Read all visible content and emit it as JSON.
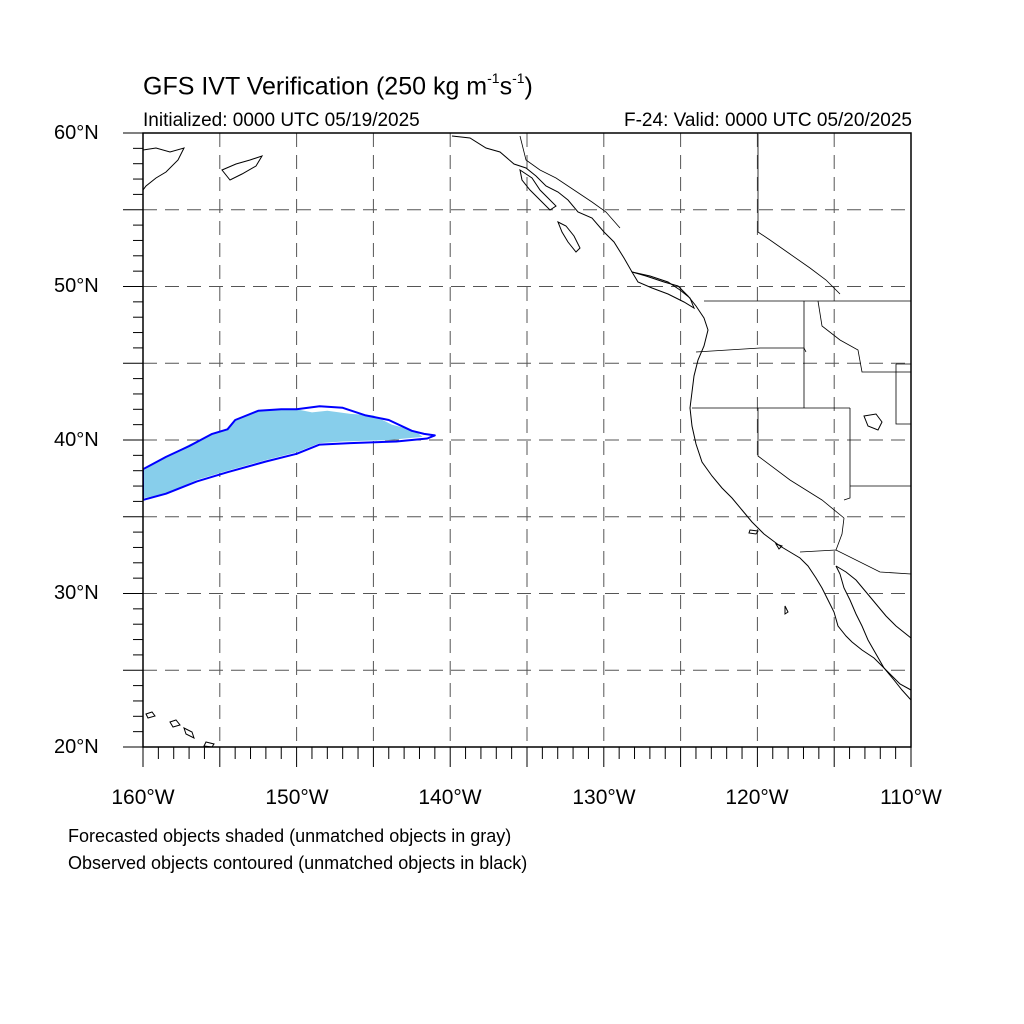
{
  "title": {
    "main": "GFS IVT Verification (250 kg m",
    "exp1": "-1",
    "mid": "s",
    "exp2": "-1",
    "close": ")"
  },
  "subtitle_left": "Initialized: 0000 UTC 05/19/2025",
  "subtitle_right": "F-24: Valid: 0000 UTC 05/20/2025",
  "lat_labels": [
    "60°N",
    "50°N",
    "40°N",
    "30°N",
    "20°N"
  ],
  "lon_labels": [
    "160°W",
    "150°W",
    "140°W",
    "130°W",
    "120°W",
    "110°W"
  ],
  "footnotes": [
    "Forecasted objects shaded (unmatched objects in gray)",
    "Observed objects contoured (unmatched objects in black)"
  ],
  "colors": {
    "forecast_fill": "#87ceeb",
    "observed_contour": "#0000ff",
    "grid": "#555555",
    "coast": "#000000"
  },
  "map_extent": {
    "lon_min": -160,
    "lon_max": -110,
    "lat_min": 20,
    "lat_max": 60
  },
  "grid_spacing_deg": 5,
  "forecast_object": {
    "outline_lonlat": [
      [
        -160,
        38.0
      ],
      [
        -158.5,
        38.9
      ],
      [
        -157,
        39.7
      ],
      [
        -155.5,
        40.4
      ],
      [
        -154.5,
        40.7
      ],
      [
        -154,
        41.3
      ],
      [
        -152.5,
        41.9
      ],
      [
        -151.5,
        42.0
      ],
      [
        -150,
        42.0
      ],
      [
        -149,
        41.8
      ],
      [
        -148,
        41.9
      ],
      [
        -146.5,
        41.7
      ],
      [
        -145,
        41.6
      ],
      [
        -143.8,
        41.0
      ],
      [
        -142.3,
        40.6
      ],
      [
        -141.8,
        40.2
      ],
      [
        -144,
        40.0
      ],
      [
        -147,
        39.9
      ],
      [
        -148.5,
        39.8
      ],
      [
        -150,
        39.2
      ],
      [
        -152,
        38.7
      ],
      [
        -154.5,
        38.0
      ],
      [
        -156.5,
        37.4
      ],
      [
        -158.5,
        36.5
      ],
      [
        -160,
        36.2
      ]
    ]
  },
  "observed_object": {
    "outline_lonlat": [
      [
        -160,
        38.1
      ],
      [
        -158.5,
        38.9
      ],
      [
        -157,
        39.6
      ],
      [
        -155.5,
        40.4
      ],
      [
        -154.5,
        40.7
      ],
      [
        -154,
        41.3
      ],
      [
        -152.5,
        41.9
      ],
      [
        -151,
        42.0
      ],
      [
        -150,
        42.0
      ],
      [
        -148.5,
        42.2
      ],
      [
        -147,
        42.1
      ],
      [
        -145.5,
        41.6
      ],
      [
        -144,
        41.3
      ],
      [
        -142.5,
        40.6
      ],
      [
        -141.7,
        40.4
      ],
      [
        -141.0,
        40.3
      ],
      [
        -141.5,
        40.1
      ],
      [
        -143.5,
        39.9
      ],
      [
        -146.5,
        39.8
      ],
      [
        -148.5,
        39.7
      ],
      [
        -150,
        39.1
      ],
      [
        -152,
        38.6
      ],
      [
        -154.5,
        37.9
      ],
      [
        -156.5,
        37.3
      ],
      [
        -158.5,
        36.5
      ],
      [
        -160,
        36.1
      ]
    ]
  }
}
